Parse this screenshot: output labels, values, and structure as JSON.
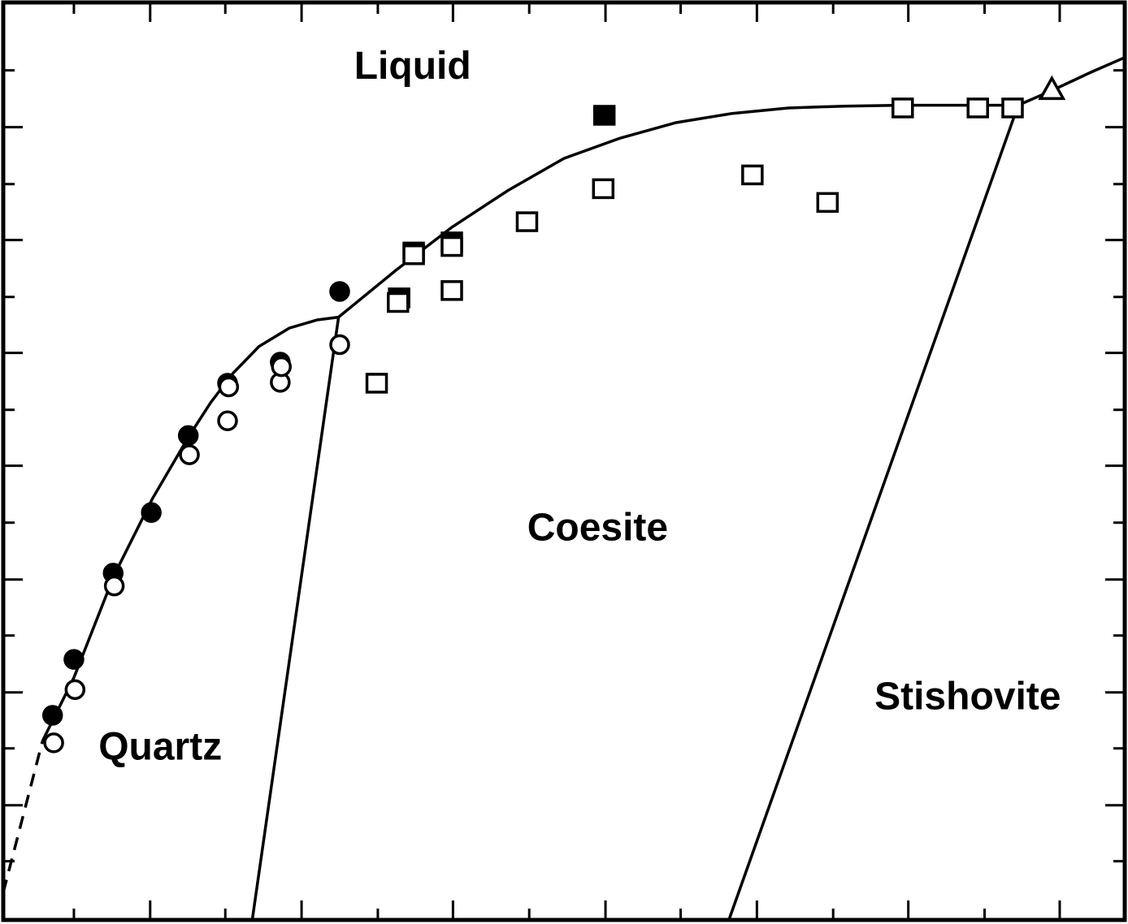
{
  "chart_data": {
    "type": "scatter",
    "title": "",
    "xlabel": "",
    "ylabel": "",
    "xlim": [
      0,
      100
    ],
    "ylim": [
      0,
      100
    ],
    "tick_labels_visible": false,
    "regions": [
      {
        "name": "Liquid",
        "at": [
          36.5,
          92.8
        ]
      },
      {
        "name": "Coesite",
        "at": [
          53.0,
          42.5
        ]
      },
      {
        "name": "Stishovite",
        "at": [
          86.0,
          24.1
        ]
      },
      {
        "name": "Quartz",
        "at": [
          14.0,
          18.6
        ]
      }
    ],
    "curves": [
      {
        "name": "melting-curve-quartz",
        "style": "solid",
        "points": [
          [
            3.5,
            19.5
          ],
          [
            6.3,
            26.4
          ],
          [
            9.9,
            37.6
          ],
          [
            13.3,
            45.9
          ],
          [
            16.5,
            52.6
          ],
          [
            18.5,
            56.4
          ],
          [
            20.5,
            59.6
          ],
          [
            22.8,
            62.5
          ],
          [
            25.5,
            64.5
          ],
          [
            28.0,
            65.4
          ],
          [
            29.9,
            65.7
          ]
        ]
      },
      {
        "name": "melting-curve-quartz-extrapolated",
        "style": "dashed",
        "points": [
          [
            0.0,
            3.0
          ],
          [
            3.5,
            19.5
          ]
        ]
      },
      {
        "name": "melting-curve-coesite",
        "style": "solid",
        "points": [
          [
            29.9,
            65.7
          ],
          [
            35.0,
            70.8
          ],
          [
            40.0,
            75.5
          ],
          [
            45.0,
            79.5
          ],
          [
            50.0,
            83.0
          ],
          [
            55.0,
            85.2
          ],
          [
            60.0,
            86.9
          ],
          [
            65.0,
            87.9
          ],
          [
            70.0,
            88.5
          ],
          [
            75.0,
            88.7
          ],
          [
            80.0,
            88.8
          ],
          [
            85.0,
            88.8
          ],
          [
            90.5,
            88.8
          ]
        ]
      },
      {
        "name": "melting-curve-stishovite",
        "style": "solid",
        "points": [
          [
            90.5,
            88.8
          ],
          [
            93.5,
            90.4
          ],
          [
            97.0,
            92.4
          ],
          [
            100.0,
            94.0
          ]
        ]
      },
      {
        "name": "quartz-coesite-boundary",
        "style": "solid",
        "points": [
          [
            22.2,
            0.0
          ],
          [
            29.9,
            65.7
          ]
        ]
      },
      {
        "name": "coesite-stishovite-boundary",
        "style": "solid",
        "points": [
          [
            64.7,
            0.0
          ],
          [
            90.5,
            88.8
          ]
        ]
      }
    ],
    "series": [
      {
        "marker": "circle",
        "fill": "filled",
        "points": [
          [
            4.4,
            22.3
          ],
          [
            6.3,
            28.4
          ],
          [
            9.8,
            37.8
          ],
          [
            13.2,
            44.4
          ],
          [
            16.5,
            52.8
          ],
          [
            20.0,
            58.5
          ],
          [
            24.7,
            60.8
          ],
          [
            30.0,
            68.5
          ]
        ]
      },
      {
        "marker": "circle",
        "fill": "open",
        "points": [
          [
            4.5,
            19.3
          ],
          [
            6.4,
            25.1
          ],
          [
            9.9,
            36.4
          ],
          [
            16.6,
            50.7
          ],
          [
            20.0,
            54.4
          ],
          [
            20.1,
            58.1
          ],
          [
            24.7,
            58.6
          ],
          [
            24.8,
            60.3
          ],
          [
            30.0,
            62.7
          ]
        ]
      },
      {
        "marker": "square",
        "fill": "filled",
        "points": [
          [
            35.3,
            67.8
          ],
          [
            36.6,
            72.8
          ],
          [
            40.0,
            73.9
          ],
          [
            53.6,
            87.7
          ]
        ]
      },
      {
        "marker": "square",
        "fill": "open",
        "points": [
          [
            33.3,
            58.5
          ],
          [
            35.2,
            67.3
          ],
          [
            36.6,
            72.5
          ],
          [
            40.0,
            68.6
          ],
          [
            40.0,
            73.4
          ],
          [
            46.7,
            76.1
          ],
          [
            53.5,
            79.7
          ],
          [
            66.8,
            81.2
          ],
          [
            73.5,
            78.2
          ],
          [
            80.2,
            88.5
          ],
          [
            86.9,
            88.5
          ],
          [
            90.0,
            88.5
          ]
        ]
      },
      {
        "marker": "triangle",
        "fill": "open",
        "points": [
          [
            93.5,
            90.5
          ]
        ]
      }
    ]
  }
}
